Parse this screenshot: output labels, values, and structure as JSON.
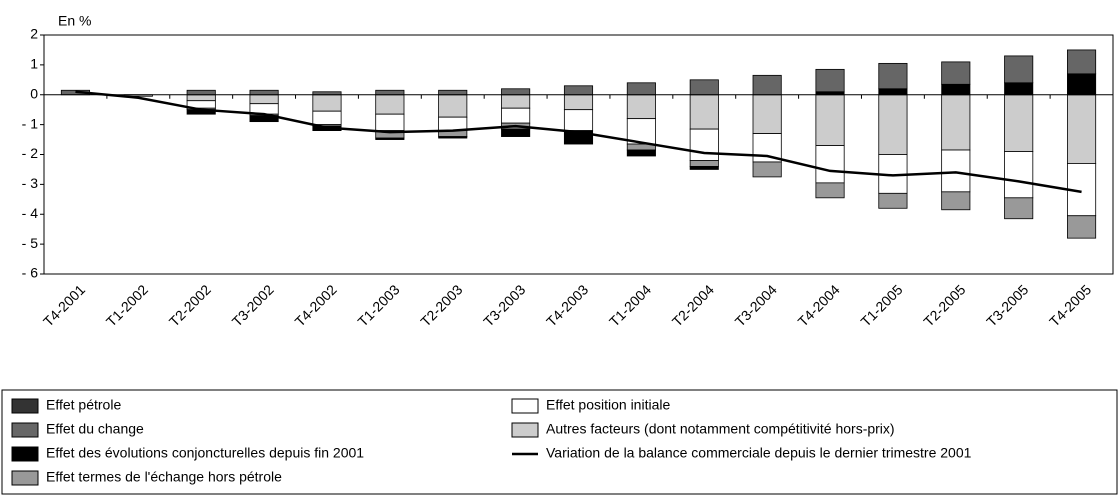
{
  "chart_data": {
    "type": "bar",
    "stacked": true,
    "y_label": "En %",
    "categories": [
      "T4-2001",
      "T1-2002",
      "T2-2002",
      "T3-2002",
      "T4-2002",
      "T1-2003",
      "T2-2003",
      "T3-2003",
      "T4-2003",
      "T1-2004",
      "T2-2004",
      "T3-2004",
      "T4-2004",
      "T1-2005",
      "T2-2005",
      "T3-2005",
      "T4-2005"
    ],
    "series": [
      {
        "name": "Autres facteurs (dont notamment compétitivité hors-prix)",
        "color": "#cccccc",
        "values": [
          0,
          -0.05,
          -0.2,
          -0.3,
          -0.55,
          -0.65,
          -0.75,
          -0.45,
          -0.5,
          -0.8,
          -1.15,
          -1.3,
          -1.7,
          -2.0,
          -1.85,
          -1.9,
          -2.3
        ]
      },
      {
        "name": "Effet position initiale",
        "color": "#ffffff",
        "values": [
          0,
          0,
          -0.25,
          -0.35,
          -0.45,
          -0.55,
          -0.45,
          -0.5,
          -0.7,
          -0.85,
          -1.05,
          -0.95,
          -1.25,
          -1.3,
          -1.4,
          -1.55,
          -1.75
        ]
      },
      {
        "name": "Effet termes de l'échange hors pétrole",
        "color": "#999999",
        "values": [
          0,
          0,
          -0.05,
          -0.05,
          -0.05,
          -0.25,
          -0.2,
          -0.2,
          0,
          -0.2,
          -0.2,
          -0.5,
          -0.5,
          -0.5,
          -0.6,
          -0.7,
          -0.75
        ]
      },
      {
        "name": "Effet des évolutions conjoncturelles depuis fin 2001",
        "color": "#000000",
        "values": [
          0,
          0,
          -0.15,
          -0.2,
          -0.15,
          -0.05,
          -0.05,
          -0.25,
          -0.45,
          -0.2,
          -0.1,
          0,
          0.1,
          0.2,
          0.35,
          0.4,
          0.7
        ]
      },
      {
        "name": "Effet du change",
        "color": "#666666",
        "values": [
          0.15,
          0,
          0.15,
          0.15,
          0.1,
          0.15,
          0.15,
          0.2,
          0.3,
          0.4,
          0.5,
          0.65,
          0.75,
          0.85,
          0.75,
          0.9,
          0.8
        ]
      },
      {
        "name": "Effet pétrole",
        "color": "#333333",
        "values": [
          0,
          0,
          0,
          0,
          0,
          0,
          0,
          0,
          0,
          0,
          0,
          0,
          0,
          0,
          0,
          0,
          0
        ]
      }
    ],
    "line": {
      "name": "Variation de la balance commerciale depuis le dernier trimestre 2001",
      "color": "#000000",
      "values": [
        0.1,
        -0.1,
        -0.5,
        -0.65,
        -1.1,
        -1.25,
        -1.2,
        -1.05,
        -1.25,
        -1.6,
        -1.95,
        -2.05,
        -2.55,
        -2.7,
        -2.6,
        -2.9,
        -3.25
      ]
    },
    "ylim": [
      -6,
      2
    ],
    "yticks": [
      {
        "value": -6,
        "label": "- 6"
      },
      {
        "value": -5,
        "label": "- 5"
      },
      {
        "value": -4,
        "label": "- 4"
      },
      {
        "value": -3,
        "label": "- 3"
      },
      {
        "value": -2,
        "label": "- 2"
      },
      {
        "value": -1,
        "label": "- 1"
      },
      0,
      1,
      2
    ]
  }
}
